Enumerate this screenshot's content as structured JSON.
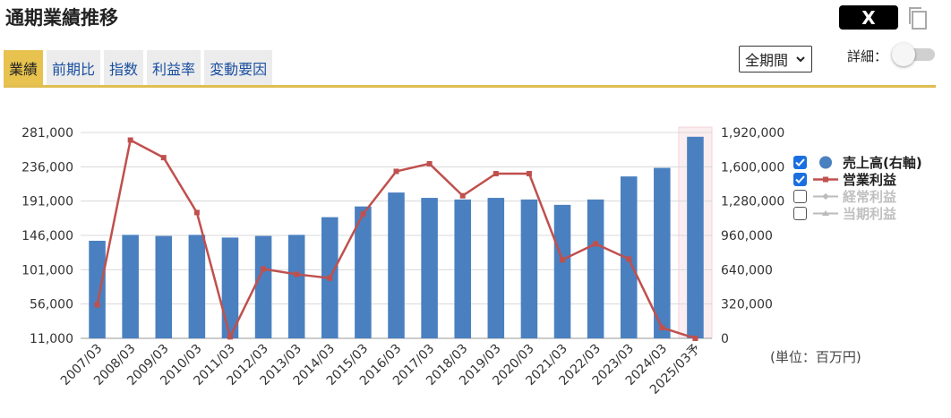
{
  "header": {
    "title": "通期業績推移",
    "x_label": "X"
  },
  "tabs": [
    {
      "label": "業績",
      "active": true
    },
    {
      "label": "前期比",
      "active": false
    },
    {
      "label": "指数",
      "active": false
    },
    {
      "label": "利益率",
      "active": false
    },
    {
      "label": "変動要因",
      "active": false
    }
  ],
  "controls": {
    "period_selected": "全期間",
    "detail_label": "詳細：",
    "detail_on": false
  },
  "unit_label": "(単位：百万円)",
  "legend": [
    {
      "label": "売上高(右軸)",
      "checked": true,
      "color": "#4a80c0"
    },
    {
      "label": "営業利益",
      "checked": true,
      "color": "#c0504d"
    },
    {
      "label": "経常利益",
      "checked": false,
      "color": "#bbbbbb"
    },
    {
      "label": "当期利益",
      "checked": false,
      "color": "#bbbbbb"
    }
  ],
  "chart_data": {
    "type": "bar+line",
    "categories": [
      "2007/03",
      "2008/03",
      "2009/03",
      "2010/03",
      "2011/03",
      "2012/03",
      "2013/03",
      "2014/03",
      "2015/03",
      "2016/03",
      "2017/03",
      "2018/03",
      "2019/03",
      "2020/03",
      "2021/03",
      "2022/03",
      "2023/03",
      "2024/03",
      "2025/03予"
    ],
    "forecast_index": 18,
    "left_axis": {
      "min": 11000,
      "max": 281000,
      "ticks": [
        "11,000",
        "56,000",
        "101,000",
        "146,000",
        "191,000",
        "236,000",
        "281,000"
      ]
    },
    "right_axis": {
      "min": 0,
      "max": 1920000,
      "ticks": [
        "0",
        "320,000",
        "640,000",
        "960,000",
        "1,280,000",
        "1,600,000",
        "1,920,000"
      ]
    },
    "series": [
      {
        "name": "売上高(右軸)",
        "type": "bar",
        "axis": "right",
        "color": "#4a80c0",
        "values": [
          910000,
          965000,
          955000,
          965000,
          940000,
          955000,
          965000,
          1130000,
          1230000,
          1360000,
          1310000,
          1295000,
          1310000,
          1295000,
          1245000,
          1295000,
          1510000,
          1590000,
          1880000
        ]
      },
      {
        "name": "営業利益",
        "type": "line",
        "axis": "left",
        "color": "#c0504d",
        "values": [
          55000,
          271000,
          248000,
          176000,
          13000,
          102000,
          95000,
          90000,
          174000,
          230000,
          240000,
          198000,
          227000,
          227000,
          114000,
          135000,
          115000,
          25000,
          11000
        ]
      }
    ]
  }
}
